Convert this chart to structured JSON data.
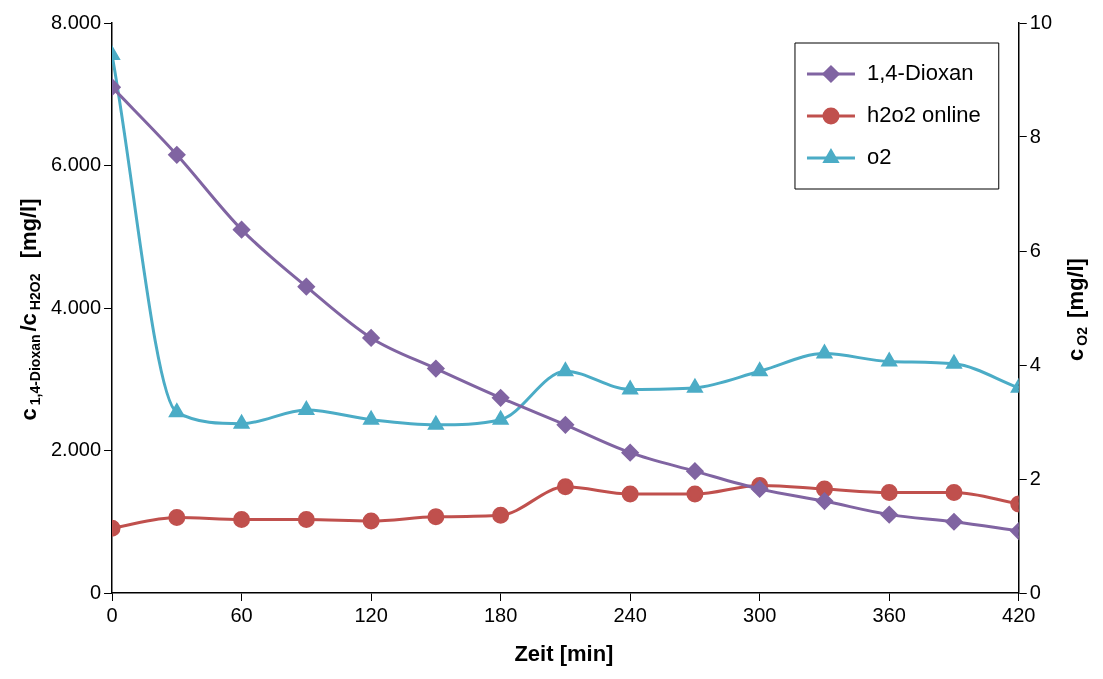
{
  "chart_data": {
    "type": "line",
    "xlabel": "Zeit [min]",
    "ylabel": "c$_{1,4-Dioxan}$/c$_{H2O2}$  [mg/l]",
    "y2label": "c$_{O2}$ [mg/l]",
    "x": [
      0,
      30,
      60,
      90,
      120,
      150,
      180,
      210,
      240,
      270,
      300,
      330,
      360,
      390,
      420
    ],
    "xlim": [
      0,
      420
    ],
    "xticks": [
      0,
      60,
      120,
      180,
      240,
      300,
      360,
      420
    ],
    "ylim": [
      0,
      8000
    ],
    "yticks": [
      0,
      {
        "value": 2000,
        "label": "2.000"
      },
      {
        "value": 4000,
        "label": "4.000"
      },
      {
        "value": 6000,
        "label": "6.000"
      },
      {
        "value": 8000,
        "label": "8.000"
      }
    ],
    "y2lim": [
      0,
      10
    ],
    "y2ticks": [
      0,
      2,
      4,
      6,
      8,
      10
    ],
    "legend": "top right",
    "series": [
      {
        "name": "1,4-Dioxan",
        "color": "#8064a2",
        "marker": "diamond",
        "values": [
          7100,
          6150,
          5100,
          4300,
          3580,
          3150,
          2740,
          2360,
          1970,
          1710,
          1460,
          1290,
          1100,
          1000,
          870
        ]
      },
      {
        "name": "h2o2 online",
        "color": "#c0504d",
        "marker": "circle",
        "values": [
          910,
          1060,
          1030,
          1030,
          1010,
          1070,
          1090,
          1490,
          1390,
          1390,
          1510,
          1460,
          1410,
          1410,
          1250
        ]
      },
      {
        "name": "o2",
        "color": "#4bacc6",
        "marker": "triangle",
        "axis": "y2",
        "values": [
          9.44,
          3.17,
          2.97,
          3.21,
          3.04,
          2.95,
          3.04,
          3.89,
          3.57,
          3.6,
          3.89,
          4.2,
          4.06,
          4.02,
          3.6
        ]
      }
    ]
  }
}
